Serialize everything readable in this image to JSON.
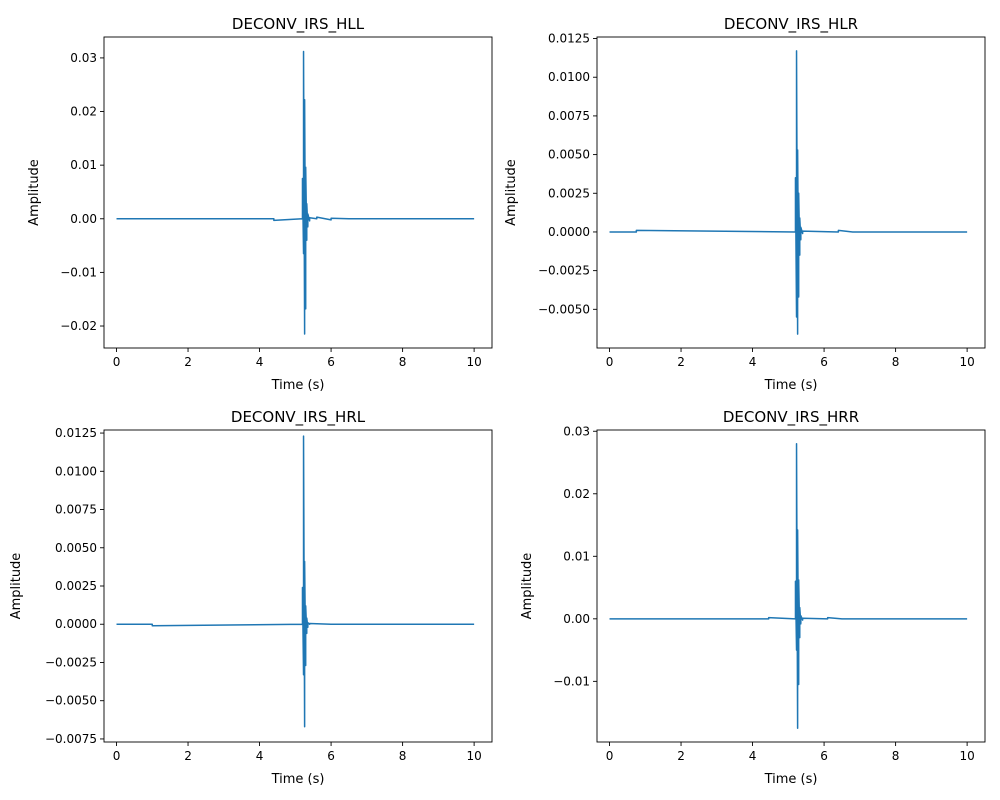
{
  "chart_data": [
    {
      "type": "line",
      "title": "DECONV_IRS_HLL",
      "xlabel": "Time (s)",
      "ylabel": "Amplitude",
      "xlim": [
        -0.35,
        10.5
      ],
      "ylim": [
        -0.0241,
        0.0339
      ],
      "xticks": [
        0,
        2,
        4,
        6,
        8,
        10
      ],
      "xtick_labels": [
        "0",
        "2",
        "4",
        "6",
        "8",
        "10"
      ],
      "yticks": [
        -0.02,
        -0.01,
        0.0,
        0.01,
        0.02,
        0.03
      ],
      "ytick_labels": [
        "−0.02",
        "−0.01",
        "0.00",
        "0.01",
        "0.02",
        "0.03"
      ],
      "grid": false,
      "color": "#1f77b4",
      "series": [
        {
          "x": [
            0,
            4.4,
            4.4,
            5.2,
            5.2,
            5.23,
            5.23,
            5.26,
            5.26,
            5.29,
            5.29,
            5.32,
            5.32,
            5.35,
            5.35,
            5.4,
            5.4,
            5.6,
            5.6,
            6.0,
            6.0,
            6.5,
            10
          ],
          "y": [
            0,
            0,
            -0.0003,
            0,
            0.0075,
            -0.0065,
            0.0312,
            -0.0215,
            0.0222,
            -0.0168,
            0.0096,
            -0.004,
            0.0028,
            -0.0015,
            0.0009,
            -0.0004,
            0.0002,
            0,
            0.0003,
            -0.0002,
            0.0001,
            0,
            0
          ]
        }
      ]
    },
    {
      "type": "line",
      "title": "DECONV_IRS_HLR",
      "xlabel": "Time (s)",
      "ylabel": "Amplitude",
      "xlim": [
        -0.35,
        10.5
      ],
      "ylim": [
        -0.0075,
        0.0126
      ],
      "xticks": [
        0,
        2,
        4,
        6,
        8,
        10
      ],
      "xtick_labels": [
        "0",
        "2",
        "4",
        "6",
        "8",
        "10"
      ],
      "yticks": [
        -0.005,
        -0.0025,
        0.0,
        0.0025,
        0.005,
        0.0075,
        0.01,
        0.0125
      ],
      "ytick_labels": [
        "−0.0050",
        "−0.0025",
        "0.0000",
        "0.0025",
        "0.0050",
        "0.0075",
        "0.0100",
        "0.0125"
      ],
      "grid": false,
      "color": "#1f77b4",
      "series": [
        {
          "x": [
            0,
            0.75,
            0.75,
            5.2,
            5.2,
            5.23,
            5.23,
            5.26,
            5.26,
            5.29,
            5.29,
            5.32,
            5.32,
            5.35,
            5.35,
            5.4,
            5.4,
            6.4,
            6.4,
            6.8,
            6.8,
            10
          ],
          "y": [
            0,
            0,
            0.0001,
            0,
            0.0035,
            -0.0055,
            0.0117,
            -0.0066,
            0.0053,
            -0.0042,
            0.0025,
            -0.0015,
            0.0009,
            -0.0005,
            0.0003,
            -0.0001,
            5e-05,
            0,
            0.0001,
            0,
            0,
            0
          ]
        }
      ]
    },
    {
      "type": "line",
      "title": "DECONV_IRS_HRL",
      "xlabel": "Time (s)",
      "ylabel": "Amplitude",
      "xlim": [
        -0.35,
        10.5
      ],
      "ylim": [
        -0.0077,
        0.0127
      ],
      "xticks": [
        0,
        2,
        4,
        6,
        8,
        10
      ],
      "xtick_labels": [
        "0",
        "2",
        "4",
        "6",
        "8",
        "10"
      ],
      "yticks": [
        -0.0075,
        -0.005,
        -0.0025,
        0.0,
        0.0025,
        0.005,
        0.0075,
        0.01,
        0.0125
      ],
      "ytick_labels": [
        "−0.0075",
        "−0.0050",
        "−0.0025",
        "0.0000",
        "0.0025",
        "0.0050",
        "0.0075",
        "0.0100",
        "0.0125"
      ],
      "grid": false,
      "color": "#1f77b4",
      "series": [
        {
          "x": [
            0,
            1.0,
            1.0,
            5.2,
            5.2,
            5.23,
            5.23,
            5.26,
            5.26,
            5.29,
            5.29,
            5.32,
            5.32,
            5.35,
            5.35,
            5.4,
            5.4,
            6.0,
            6.0,
            10
          ],
          "y": [
            0,
            0,
            -0.0001,
            0,
            0.0024,
            -0.0033,
            0.0123,
            -0.0067,
            0.0041,
            -0.0027,
            0.0012,
            -0.0006,
            0.0004,
            -0.0002,
            0.0001,
            0,
            5e-05,
            0,
            0,
            0
          ]
        }
      ]
    },
    {
      "type": "line",
      "title": "DECONV_IRS_HRR",
      "xlabel": "Time (s)",
      "ylabel": "Amplitude",
      "xlim": [
        -0.35,
        10.5
      ],
      "ylim": [
        -0.0197,
        0.0302
      ],
      "xticks": [
        0,
        2,
        4,
        6,
        8,
        10
      ],
      "xtick_labels": [
        "0",
        "2",
        "4",
        "6",
        "8",
        "10"
      ],
      "yticks": [
        -0.01,
        0.0,
        0.01,
        0.02,
        0.03
      ],
      "ytick_labels": [
        "−0.01",
        "0.00",
        "0.01",
        "0.02",
        "0.03"
      ],
      "grid": false,
      "color": "#1f77b4",
      "series": [
        {
          "x": [
            0,
            4.45,
            4.45,
            5.2,
            5.2,
            5.23,
            5.23,
            5.26,
            5.26,
            5.29,
            5.29,
            5.32,
            5.32,
            5.35,
            5.35,
            5.4,
            5.4,
            6.1,
            6.1,
            6.5,
            10
          ],
          "y": [
            0,
            0,
            0.0002,
            0,
            0.006,
            -0.005,
            0.028,
            -0.0175,
            0.0142,
            -0.0105,
            0.0062,
            -0.003,
            0.0018,
            -0.0008,
            0.0005,
            -0.0002,
            0.0001,
            0,
            0.0002,
            0,
            0
          ]
        }
      ]
    }
  ]
}
